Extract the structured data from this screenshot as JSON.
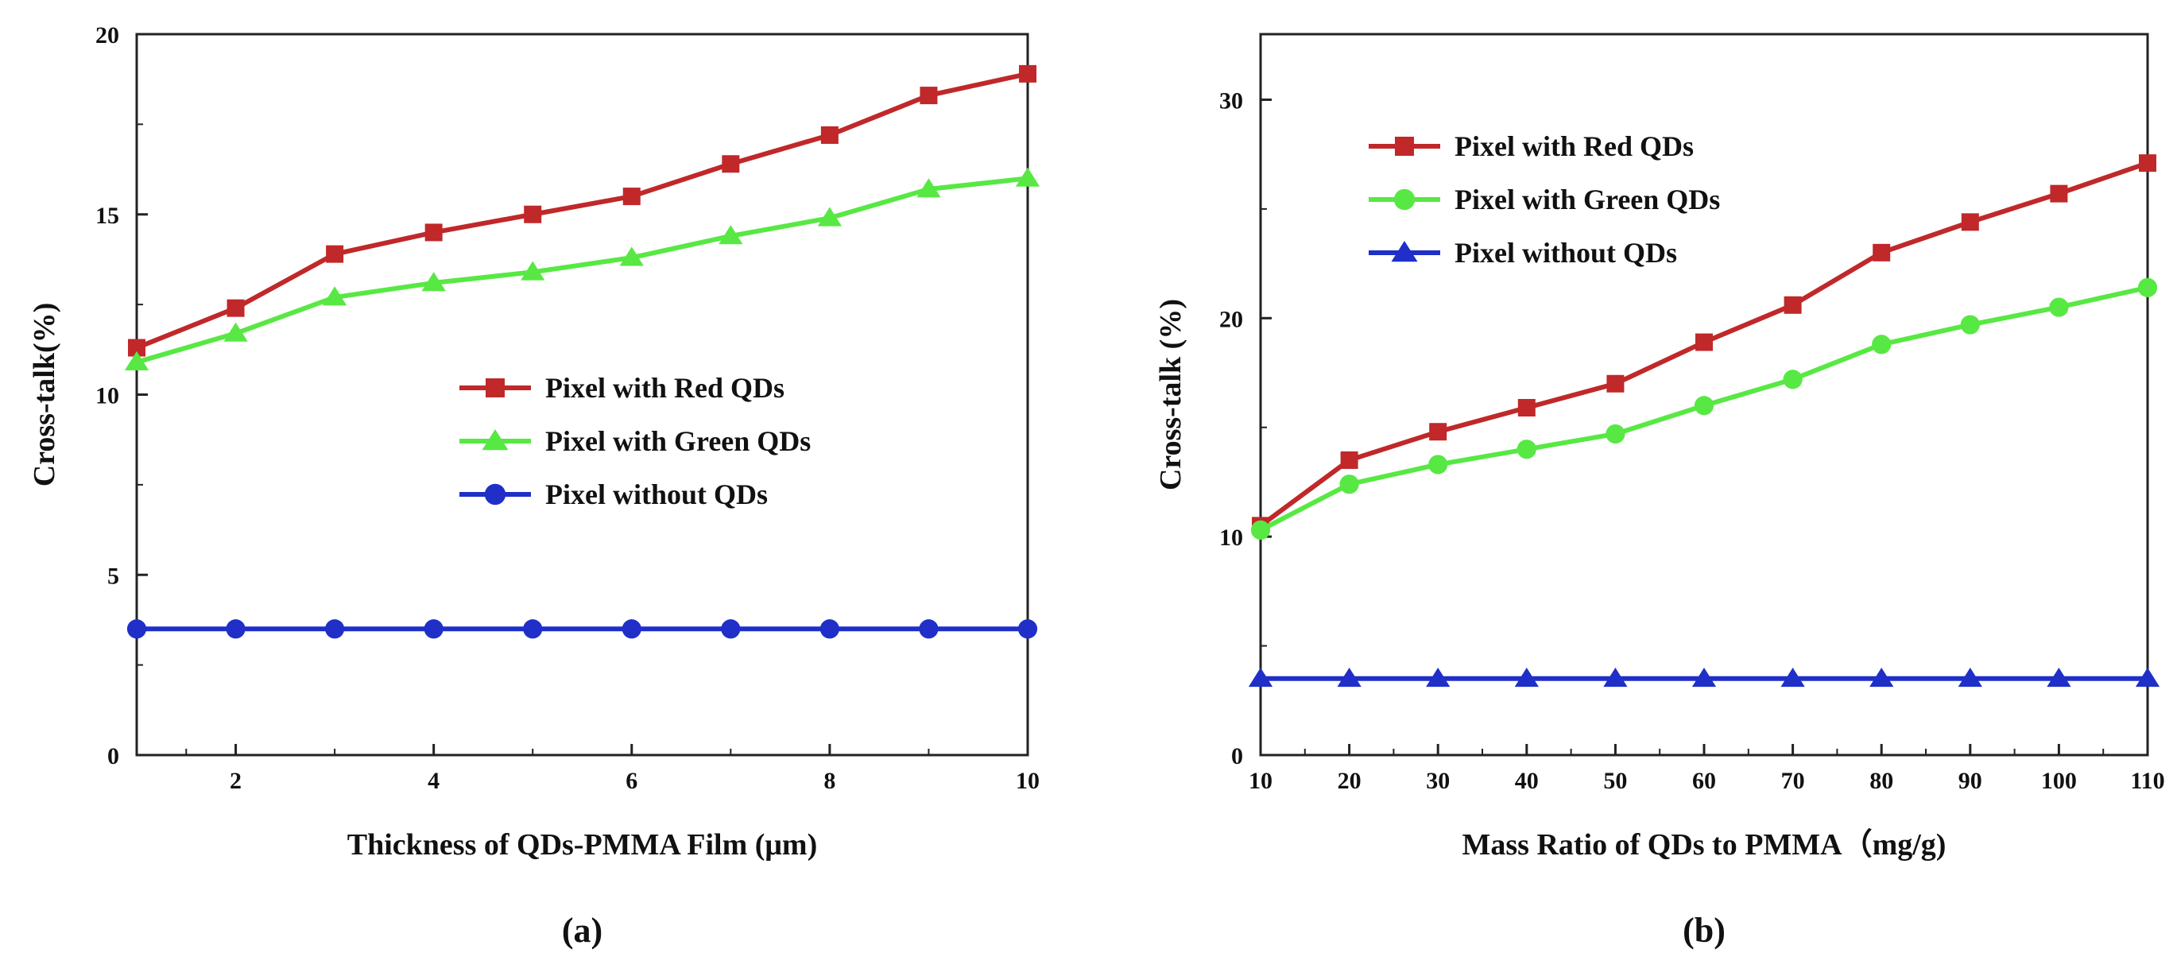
{
  "chart_data": [
    {
      "type": "line",
      "panel_label": "(a)",
      "xlabel": "Thickness of QDs-PMMA Film (μm)",
      "ylabel": "Cross-talk(%)",
      "xlim": [
        1,
        10
      ],
      "ylim": [
        0,
        20
      ],
      "xticks": [
        2,
        4,
        6,
        8,
        10
      ],
      "yticks": [
        0,
        5,
        10,
        15,
        20
      ],
      "legend_position": "center-right",
      "x": [
        1,
        2,
        3,
        4,
        5,
        6,
        7,
        8,
        9,
        10
      ],
      "series": [
        {
          "name": "Pixel with Red QDs",
          "color": "#c0282a",
          "marker": "square",
          "values": [
            11.3,
            12.4,
            13.9,
            14.5,
            15.0,
            15.5,
            16.4,
            17.2,
            18.3,
            18.9
          ]
        },
        {
          "name": "Pixel with Green QDs",
          "color": "#58e844",
          "marker": "triangle",
          "values": [
            10.9,
            11.7,
            12.7,
            13.1,
            13.4,
            13.8,
            14.4,
            14.9,
            15.7,
            16.0
          ]
        },
        {
          "name": "Pixel without QDs",
          "color": "#1f2fc8",
          "marker": "circle",
          "values": [
            3.5,
            3.5,
            3.5,
            3.5,
            3.5,
            3.5,
            3.5,
            3.5,
            3.5,
            3.5
          ]
        }
      ]
    },
    {
      "type": "line",
      "panel_label": "(b)",
      "xlabel": "Mass Ratio of QDs to PMMA（mg/g)",
      "ylabel": "Cross-talk (%)",
      "xlim": [
        10,
        110
      ],
      "ylim": [
        0,
        33
      ],
      "xticks": [
        10,
        20,
        30,
        40,
        50,
        60,
        70,
        80,
        90,
        100,
        110
      ],
      "yticks": [
        0,
        10,
        20,
        30
      ],
      "legend_position": "top-left",
      "x": [
        10,
        20,
        30,
        40,
        50,
        60,
        70,
        80,
        90,
        100,
        110
      ],
      "series": [
        {
          "name": "Pixel with Red QDs",
          "color": "#c0282a",
          "marker": "square",
          "values": [
            10.5,
            13.5,
            14.8,
            15.9,
            17.0,
            18.9,
            20.6,
            23.0,
            24.4,
            25.7,
            27.1
          ]
        },
        {
          "name": "Pixel with Green QDs",
          "color": "#58e844",
          "marker": "circle",
          "values": [
            10.3,
            12.4,
            13.3,
            14.0,
            14.7,
            16.0,
            17.2,
            18.8,
            19.7,
            20.5,
            21.4
          ]
        },
        {
          "name": "Pixel without QDs",
          "color": "#1f2fc8",
          "marker": "triangle",
          "values": [
            3.5,
            3.5,
            3.5,
            3.5,
            3.5,
            3.5,
            3.5,
            3.5,
            3.5,
            3.5,
            3.5
          ]
        }
      ]
    }
  ]
}
